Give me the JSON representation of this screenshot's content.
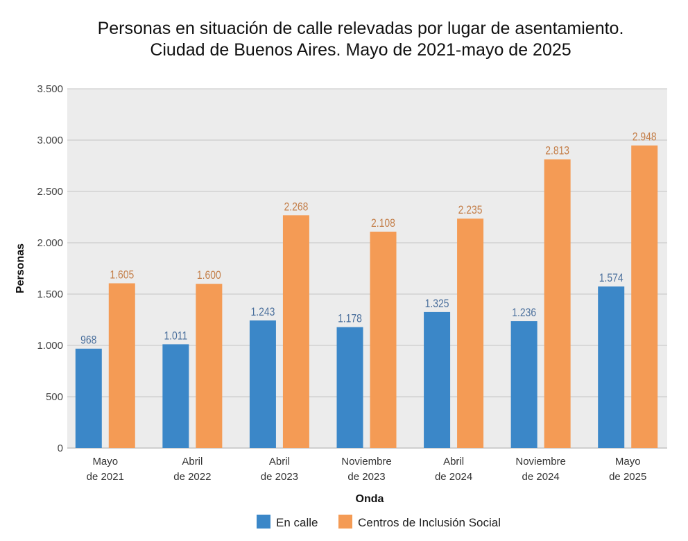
{
  "chart_data": {
    "type": "bar",
    "title": "Personas en situación de calle relevadas por lugar de asentamiento.",
    "subtitle": "Ciudad de Buenos Aires. Mayo de 2021-mayo de 2025",
    "xlabel": "Onda",
    "ylabel": "Personas",
    "ylim": [
      0,
      3500
    ],
    "yticks": [
      0,
      500,
      1000,
      1500,
      2000,
      2500,
      3000,
      3500
    ],
    "ytick_labels": [
      "0",
      "500",
      "1.000",
      "1.500",
      "2.000",
      "2.500",
      "3.000",
      "3.500"
    ],
    "grid": true,
    "legend": "bottom",
    "categories": [
      [
        "Mayo",
        "de 2021"
      ],
      [
        "Abril",
        "de 2022"
      ],
      [
        "Abril",
        "de 2023"
      ],
      [
        "Noviembre",
        "de 2023"
      ],
      [
        "Abril",
        "de 2024"
      ],
      [
        "Noviembre",
        "de 2024"
      ],
      [
        "Mayo",
        "de 2025"
      ]
    ],
    "series": [
      {
        "name": "En calle",
        "color": "#3b87c8",
        "label_color": "#4a6f9c",
        "values": [
          968,
          1011,
          1243,
          1178,
          1325,
          1236,
          1574
        ],
        "labels": [
          "968",
          "1.011",
          "1.243",
          "1.178",
          "1.325",
          "1.236",
          "1.574"
        ]
      },
      {
        "name": "Centros de Inclusión Social",
        "color": "#f49b55",
        "label_color": "#c47f4a",
        "values": [
          1605,
          1600,
          2268,
          2108,
          2235,
          2813,
          2948
        ],
        "labels": [
          "1.605",
          "1.600",
          "2.268",
          "2.108",
          "2.235",
          "2.813",
          "2.948"
        ]
      }
    ],
    "background": "#ececec"
  }
}
